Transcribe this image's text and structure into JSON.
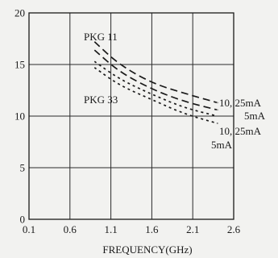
{
  "chart_data": {
    "type": "line",
    "xlabel": "FREQUENCY(GHz)",
    "ylabel": "",
    "xlim": [
      0.1,
      2.6
    ],
    "ylim": [
      0,
      20
    ],
    "xticks": [
      "0.1",
      "0.6",
      "1.1",
      "1.6",
      "2.1",
      "2.6"
    ],
    "yticks": [
      "0",
      "5",
      "10",
      "15",
      "20"
    ],
    "grid": true,
    "series": [
      {
        "name": "PKG 11 10, 25mA",
        "x": [
          0.9,
          1.2,
          1.6,
          2.0,
          2.4
        ],
        "y": [
          17.2,
          15.0,
          13.2,
          12.2,
          11.3
        ],
        "dash": "9,5"
      },
      {
        "name": "PKG 11 5mA",
        "x": [
          0.9,
          1.2,
          1.6,
          2.0,
          2.4
        ],
        "y": [
          16.4,
          14.3,
          12.6,
          11.4,
          10.6
        ],
        "dash": "9,5"
      },
      {
        "name": "PKG 33 10, 25mA",
        "x": [
          0.9,
          1.2,
          1.6,
          2.0,
          2.4
        ],
        "y": [
          15.3,
          13.6,
          12.1,
          10.8,
          10.0
        ],
        "dash": "3,4"
      },
      {
        "name": "PKG 33 5mA",
        "x": [
          0.9,
          1.2,
          1.6,
          2.0,
          2.4
        ],
        "y": [
          14.7,
          13.0,
          11.6,
          10.2,
          9.3
        ],
        "dash": "3,4"
      }
    ],
    "annotations": [
      {
        "id": "pkg11",
        "text": "PKG 11"
      },
      {
        "id": "pkg33",
        "text": "PKG 33"
      },
      {
        "id": "curr1",
        "text": "10, 25mA"
      },
      {
        "id": "curr2",
        "text": "5mA"
      },
      {
        "id": "curr3",
        "text": "10, 25mA"
      },
      {
        "id": "curr4",
        "text": "5mA"
      }
    ]
  }
}
